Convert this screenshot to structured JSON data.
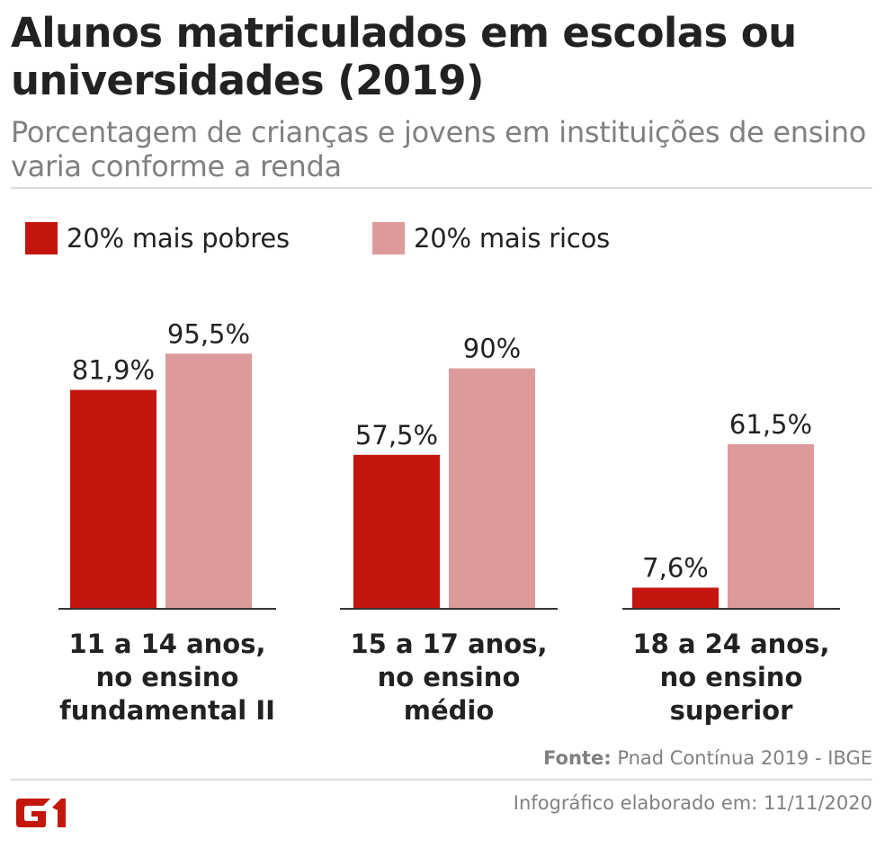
{
  "header": {
    "title": "Alunos matriculados em escolas ou universidades (2019)",
    "subtitle": "Porcentagem de crianças e jovens em instituições de ensino varia conforme a renda"
  },
  "legend": {
    "items": [
      {
        "label": "20% mais pobres",
        "color": "#c4160f"
      },
      {
        "label": "20% mais ricos",
        "color": "#dc9a9a"
      }
    ]
  },
  "chart_data": {
    "type": "bar",
    "categories": [
      [
        "11 a 14 anos,",
        "no ensino",
        "fundamental II"
      ],
      [
        "15 a 17 anos,",
        "no ensino",
        "médio"
      ],
      [
        "18 a 24 anos,",
        "no ensino",
        "superior"
      ]
    ],
    "series": [
      {
        "name": "20% mais pobres",
        "values": [
          81.9,
          57.5,
          7.6
        ],
        "labels": [
          "81,9%",
          "57,5%",
          "7,6%"
        ],
        "color": "#c4160f"
      },
      {
        "name": "20% mais ricos",
        "values": [
          95.5,
          90,
          61.5
        ],
        "labels": [
          "95,5%",
          "90%",
          "61,5%"
        ],
        "color": "#dc9a9a"
      }
    ],
    "ylim": [
      0,
      100
    ],
    "title": "Alunos matriculados em escolas ou universidades (2019)",
    "xlabel": "",
    "ylabel": "",
    "grid": false,
    "legend_position": "top-left"
  },
  "footer": {
    "source_label": "Fonte:",
    "source_text": "Pnad Contínua 2019 - IBGE",
    "logo_text": "G1",
    "date_text": "Infográfico elaborado em: 11/11/2020"
  },
  "colors": {
    "title": "#222222",
    "subtitle": "#808080",
    "axis": "#333333",
    "logo": "#c4170c"
  }
}
